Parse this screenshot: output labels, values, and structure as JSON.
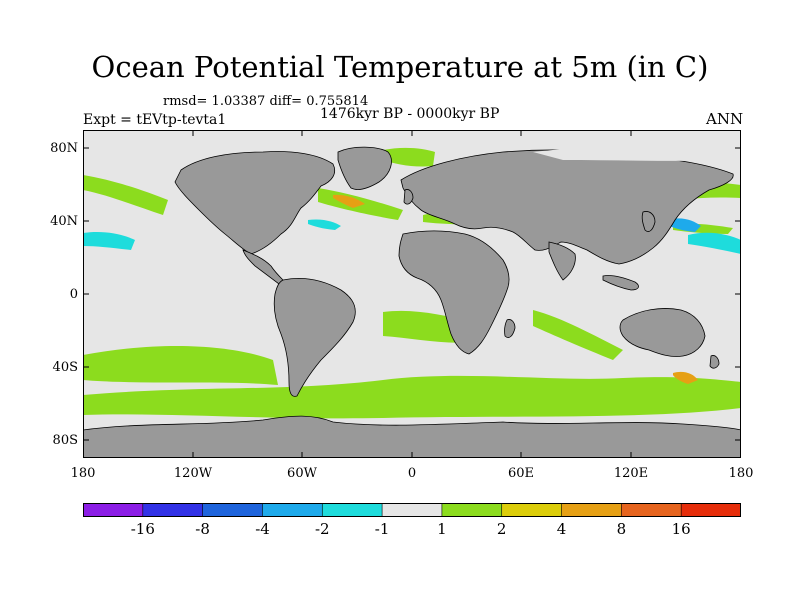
{
  "plot": {
    "title": "Ocean Potential Temperature at 5m (in C)",
    "stats": "rmsd= 1.03387 diff= 0.755814",
    "experiment": "Expt = tEVtp-tevta1",
    "period": "1476kyr BP - 0000kyr BP",
    "season": "ANN"
  },
  "axes": {
    "lat_labels": [
      "80N",
      "40N",
      "0",
      "40S",
      "80S"
    ],
    "lon_labels": [
      "180",
      "120W",
      "60W",
      "0",
      "60E",
      "120E",
      "180"
    ]
  },
  "colors": {
    "land": "#999999",
    "ocean_neutral": "#e6e6e6",
    "coast": "#000000"
  },
  "colorbar": {
    "bins": [
      "#8c1ee6",
      "#3232e6",
      "#1e64dc",
      "#1eaaeb",
      "#1edcdc",
      "#e6e6e6",
      "#8cdc1e",
      "#dccd0a",
      "#e6a014",
      "#e6641e",
      "#e62d0a"
    ],
    "labels": [
      "-16",
      "-8",
      "-4",
      "-2",
      "-1",
      "1",
      "2",
      "4",
      "8",
      "16"
    ]
  }
}
